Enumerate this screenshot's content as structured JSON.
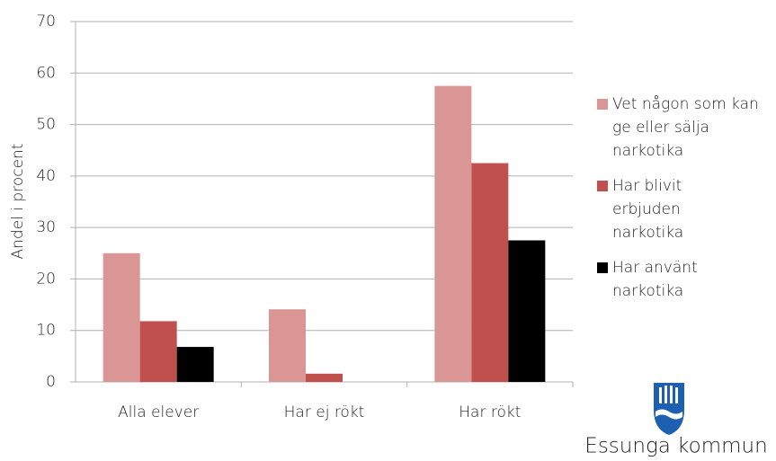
{
  "chart_data": {
    "type": "bar",
    "y_label": "Andel i procent",
    "categories": [
      "Alla elever",
      "Har ej rökt",
      "Har rökt"
    ],
    "series": [
      {
        "name": "Vet någon som kan ge eller sälja narkotika",
        "color": "#d99694",
        "values": [
          25,
          14.1,
          57.5
        ]
      },
      {
        "name": "Har blivit erbjuden narkotika",
        "color": "#c0504d",
        "values": [
          11.8,
          1.6,
          42.5
        ]
      },
      {
        "name": "Har använt narkotika",
        "color": "#000000",
        "values": [
          6.8,
          0,
          27.5
        ]
      }
    ],
    "ylim": [
      0,
      70
    ],
    "yticks": [
      0,
      10,
      20,
      30,
      40,
      50,
      60,
      70
    ],
    "grid": true,
    "legend": "right"
  },
  "logo": {
    "text": "Essunga kommun"
  }
}
